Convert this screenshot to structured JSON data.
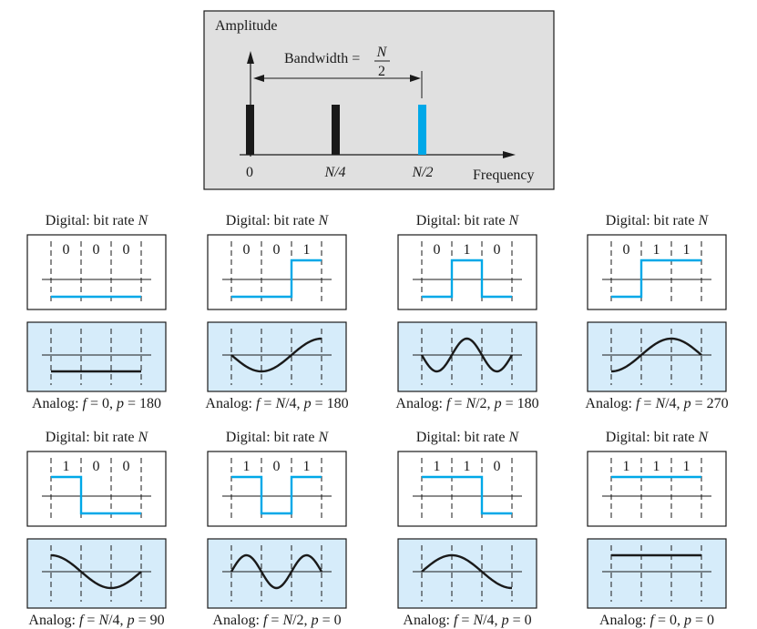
{
  "spectrum": {
    "amplitude_label": "Amplitude",
    "frequency_label": "Frequency",
    "bandwidth_label": "Bandwidth =",
    "bandwidth_num": "N",
    "bandwidth_den": "2",
    "ticks": [
      "0",
      "N/4",
      "N/2"
    ],
    "colors": {
      "highlight": "#00a8e8",
      "black": "#1a1a1a",
      "panel": "#e0e0e0"
    }
  },
  "panels": [
    {
      "digital_label": "Digital: bit rate N",
      "bits": [
        "0",
        "0",
        "0"
      ],
      "analog_label": "Analog: f = 0, p = 180"
    },
    {
      "digital_label": "Digital: bit rate N",
      "bits": [
        "0",
        "0",
        "1"
      ],
      "analog_label": "Analog: f = N/4, p = 180"
    },
    {
      "digital_label": "Digital: bit rate N",
      "bits": [
        "0",
        "1",
        "0"
      ],
      "analog_label": "Analog: f = N/2, p = 180"
    },
    {
      "digital_label": "Digital: bit rate N",
      "bits": [
        "0",
        "1",
        "1"
      ],
      "analog_label": "Analog: f = N/4, p = 270"
    },
    {
      "digital_label": "Digital: bit rate N",
      "bits": [
        "1",
        "0",
        "0"
      ],
      "analog_label": "Analog: f = N/4, p = 90"
    },
    {
      "digital_label": "Digital: bit rate N",
      "bits": [
        "1",
        "0",
        "1"
      ],
      "analog_label": "Analog: f = N/2, p = 0"
    },
    {
      "digital_label": "Digital: bit rate N",
      "bits": [
        "1",
        "1",
        "0"
      ],
      "analog_label": "Analog: f = N/4, p = 0"
    },
    {
      "digital_label": "Digital: bit rate N",
      "bits": [
        "1",
        "1",
        "1"
      ],
      "analog_label": "Analog: f = 0, p = 0"
    }
  ]
}
